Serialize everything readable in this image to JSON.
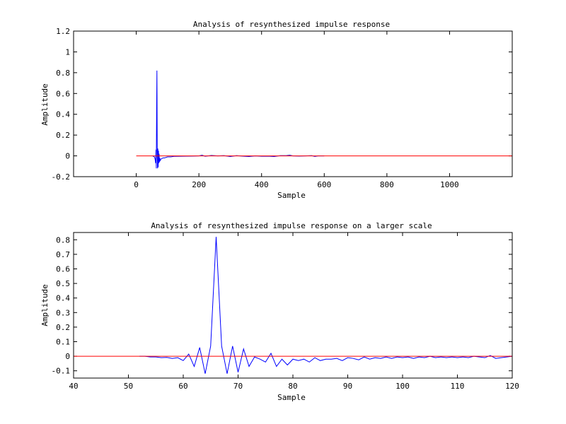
{
  "colors": {
    "background": "#ffffff",
    "axes": "#000000",
    "signal": "#0000ff",
    "reference": "#ff0000"
  },
  "chart_data": [
    {
      "type": "line",
      "title": "Analysis of resynthesized impulse response",
      "xlabel": "Sample",
      "ylabel": "Amplitude",
      "xlim": [
        -200,
        1200
      ],
      "ylim": [
        -0.2,
        1.2
      ],
      "xticks": [
        0,
        200,
        400,
        600,
        800,
        1000
      ],
      "xtick_labels": [
        "0",
        "200",
        "400",
        "600",
        "800",
        "1000"
      ],
      "yticks": [
        -0.2,
        0,
        0.2,
        0.4,
        0.6,
        0.8,
        1,
        1.2
      ],
      "ytick_labels": [
        "-0.2",
        "0",
        "0.2",
        "0.4",
        "0.6",
        "0.8",
        "1",
        "1.2"
      ],
      "grid": false,
      "series": [
        {
          "color": "#0000ff",
          "x": [
            52,
            58,
            60,
            62,
            63,
            64,
            65,
            66,
            67,
            68,
            69,
            70,
            71,
            72,
            73,
            74,
            75,
            76,
            78,
            80,
            85,
            90,
            100,
            110,
            120,
            140,
            160,
            180,
            200,
            210,
            220,
            240,
            260,
            280,
            300,
            320,
            340,
            360,
            380,
            400,
            420,
            440,
            460,
            480,
            490,
            500,
            520,
            540,
            560,
            570,
            580,
            600
          ],
          "y": [
            0,
            -0.01,
            -0.03,
            -0.07,
            0.06,
            -0.12,
            0.45,
            0.82,
            0.07,
            -0.12,
            0.07,
            -0.11,
            0.05,
            -0.07,
            0.02,
            -0.06,
            -0.02,
            -0.05,
            -0.03,
            -0.03,
            -0.02,
            -0.02,
            -0.01,
            -0.01,
            -0.005,
            -0.004,
            -0.003,
            -0.002,
            0,
            0.006,
            -0.004,
            0.004,
            0,
            0.002,
            -0.006,
            0.002,
            -0.003,
            -0.006,
            0,
            -0.004,
            -0.003,
            -0.006,
            0.002,
            0.003,
            0.006,
            0,
            -0.002,
            0,
            0.002,
            -0.005,
            0,
            0
          ]
        },
        {
          "color": "#ff0000",
          "x": [
            0,
            1200
          ],
          "y": [
            0,
            0
          ]
        }
      ]
    },
    {
      "type": "line",
      "title": "Analysis of resynthesized impulse response on a larger scale",
      "xlabel": "Sample",
      "ylabel": "Amplitude",
      "xlim": [
        40,
        120
      ],
      "ylim": [
        -0.15,
        0.85
      ],
      "xticks": [
        40,
        50,
        60,
        70,
        80,
        90,
        100,
        110,
        120
      ],
      "xtick_labels": [
        "40",
        "50",
        "60",
        "70",
        "80",
        "90",
        "100",
        "110",
        "120"
      ],
      "yticks": [
        -0.1,
        0,
        0.1,
        0.2,
        0.3,
        0.4,
        0.5,
        0.6,
        0.7,
        0.8
      ],
      "ytick_labels": [
        "-0.1",
        "0",
        "0.1",
        "0.2",
        "0.3",
        "0.4",
        "0.5",
        "0.6",
        "0.7",
        "0.8"
      ],
      "grid": false,
      "series": [
        {
          "color": "#0000ff",
          "x": [
            52,
            53,
            54,
            55,
            56,
            57,
            58,
            59,
            60,
            61,
            62,
            63,
            64,
            65,
            66,
            67,
            68,
            69,
            70,
            71,
            72,
            73,
            74,
            75,
            76,
            77,
            78,
            79,
            80,
            81,
            82,
            83,
            84,
            85,
            86,
            87,
            88,
            89,
            90,
            91,
            92,
            93,
            94,
            95,
            96,
            97,
            98,
            99,
            100,
            101,
            102,
            103,
            104,
            105,
            106,
            107,
            108,
            109,
            110,
            111,
            112,
            113,
            114,
            115,
            116,
            117,
            118,
            119,
            120
          ],
          "y": [
            0,
            0,
            -0.005,
            -0.005,
            -0.01,
            -0.008,
            -0.015,
            -0.01,
            -0.03,
            0.015,
            -0.07,
            0.06,
            -0.12,
            0.07,
            0.82,
            0.07,
            -0.12,
            0.07,
            -0.11,
            0.05,
            -0.07,
            -0.005,
            -0.02,
            -0.04,
            0.02,
            -0.07,
            -0.02,
            -0.06,
            -0.02,
            -0.03,
            -0.02,
            -0.04,
            -0.01,
            -0.03,
            -0.02,
            -0.02,
            -0.015,
            -0.03,
            -0.01,
            -0.015,
            -0.025,
            -0.005,
            -0.02,
            -0.01,
            -0.015,
            -0.005,
            -0.015,
            -0.005,
            -0.01,
            -0.005,
            -0.015,
            -0.005,
            -0.01,
            0,
            -0.01,
            -0.005,
            -0.01,
            -0.005,
            -0.01,
            -0.005,
            -0.01,
            0,
            -0.005,
            -0.01,
            0.005,
            -0.015,
            -0.01,
            -0.005,
            0
          ]
        },
        {
          "color": "#ff0000",
          "x": [
            40,
            120
          ],
          "y": [
            0,
            0
          ]
        }
      ]
    }
  ]
}
